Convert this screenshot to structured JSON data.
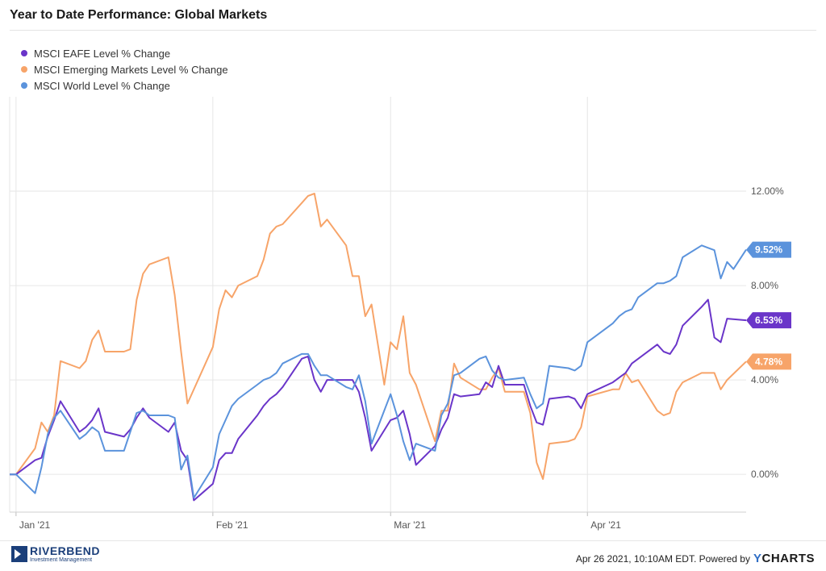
{
  "title": "Year to Date Performance: Global Markets",
  "legend": [
    {
      "label": "MSCI EAFE Level % Change",
      "color": "#6a35c9"
    },
    {
      "label": "MSCI Emerging Markets Level % Change",
      "color": "#f7a469"
    },
    {
      "label": "MSCI World Level % Change",
      "color": "#5b93dc"
    }
  ],
  "footer": {
    "logo_name": "RIVERBEND",
    "logo_sub": "Investment Management",
    "timestamp": "Apr 26 2021, 10:10AM EDT. Powered by",
    "brand_y": "Y",
    "brand_rest": "CHARTS"
  },
  "chart_data": {
    "type": "line",
    "title": "Year to Date Performance: Global Markets",
    "xlabel": "",
    "ylabel": "",
    "x_range": [
      "2020-12-31",
      "2021-04-26"
    ],
    "x_ticks": [
      {
        "date": "2021-01-01",
        "label": "Jan '21"
      },
      {
        "date": "2021-02-01",
        "label": "Feb '21"
      },
      {
        "date": "2021-03-01",
        "label": "Mar '21"
      },
      {
        "date": "2021-04-01",
        "label": "Apr '21"
      }
    ],
    "ylim": [
      -1.6,
      16
    ],
    "y_ticks": [
      0,
      4,
      8,
      12
    ],
    "y_tick_labels": [
      "0.00%",
      "4.00%",
      "8.00%",
      "12.00%"
    ],
    "y_axis_position": "right",
    "grid": true,
    "legend_position": "top-left",
    "series": [
      {
        "name": "MSCI EAFE Level % Change",
        "color": "#6a35c9",
        "end_label": "6.53%",
        "points": [
          [
            "2020-12-31",
            0
          ],
          [
            "2021-01-01",
            0
          ],
          [
            "2021-01-04",
            0.6
          ],
          [
            "2021-01-05",
            0.7
          ],
          [
            "2021-01-06",
            1.6
          ],
          [
            "2021-01-07",
            2.3
          ],
          [
            "2021-01-08",
            3.1
          ],
          [
            "2021-01-11",
            1.8
          ],
          [
            "2021-01-12",
            2.0
          ],
          [
            "2021-01-13",
            2.3
          ],
          [
            "2021-01-14",
            2.8
          ],
          [
            "2021-01-15",
            1.8
          ],
          [
            "2021-01-18",
            1.6
          ],
          [
            "2021-01-19",
            1.9
          ],
          [
            "2021-01-20",
            2.4
          ],
          [
            "2021-01-21",
            2.8
          ],
          [
            "2021-01-22",
            2.4
          ],
          [
            "2021-01-25",
            1.8
          ],
          [
            "2021-01-26",
            2.2
          ],
          [
            "2021-01-27",
            1.0
          ],
          [
            "2021-01-28",
            0.6
          ],
          [
            "2021-01-29",
            -1.1
          ],
          [
            "2021-02-01",
            -0.4
          ],
          [
            "2021-02-02",
            0.6
          ],
          [
            "2021-02-03",
            0.9
          ],
          [
            "2021-02-04",
            0.9
          ],
          [
            "2021-02-05",
            1.5
          ],
          [
            "2021-02-08",
            2.5
          ],
          [
            "2021-02-09",
            2.9
          ],
          [
            "2021-02-10",
            3.2
          ],
          [
            "2021-02-11",
            3.4
          ],
          [
            "2021-02-12",
            3.7
          ],
          [
            "2021-02-15",
            4.9
          ],
          [
            "2021-02-16",
            5.0
          ],
          [
            "2021-02-17",
            4.0
          ],
          [
            "2021-02-18",
            3.5
          ],
          [
            "2021-02-19",
            4.0
          ],
          [
            "2021-02-22",
            4.0
          ],
          [
            "2021-02-23",
            4.0
          ],
          [
            "2021-02-24",
            3.5
          ],
          [
            "2021-02-25",
            2.4
          ],
          [
            "2021-02-26",
            1.0
          ],
          [
            "2021-03-01",
            2.3
          ],
          [
            "2021-03-02",
            2.4
          ],
          [
            "2021-03-03",
            2.7
          ],
          [
            "2021-03-04",
            1.7
          ],
          [
            "2021-03-05",
            0.4
          ],
          [
            "2021-03-08",
            1.2
          ],
          [
            "2021-03-09",
            1.9
          ],
          [
            "2021-03-10",
            2.4
          ],
          [
            "2021-03-11",
            3.4
          ],
          [
            "2021-03-12",
            3.3
          ],
          [
            "2021-03-15",
            3.4
          ],
          [
            "2021-03-16",
            3.9
          ],
          [
            "2021-03-17",
            3.7
          ],
          [
            "2021-03-18",
            4.6
          ],
          [
            "2021-03-19",
            3.8
          ],
          [
            "2021-03-22",
            3.8
          ],
          [
            "2021-03-23",
            2.9
          ],
          [
            "2021-03-24",
            2.2
          ],
          [
            "2021-03-25",
            2.1
          ],
          [
            "2021-03-26",
            3.2
          ],
          [
            "2021-03-29",
            3.3
          ],
          [
            "2021-03-30",
            3.2
          ],
          [
            "2021-03-31",
            2.8
          ],
          [
            "2021-04-01",
            3.4
          ],
          [
            "2021-04-05",
            3.9
          ],
          [
            "2021-04-06",
            4.1
          ],
          [
            "2021-04-07",
            4.3
          ],
          [
            "2021-04-08",
            4.7
          ],
          [
            "2021-04-09",
            4.9
          ],
          [
            "2021-04-12",
            5.5
          ],
          [
            "2021-04-13",
            5.2
          ],
          [
            "2021-04-14",
            5.1
          ],
          [
            "2021-04-15",
            5.5
          ],
          [
            "2021-04-16",
            6.3
          ],
          [
            "2021-04-19",
            7.1
          ],
          [
            "2021-04-20",
            7.4
          ],
          [
            "2021-04-21",
            5.8
          ],
          [
            "2021-04-22",
            5.6
          ],
          [
            "2021-04-23",
            6.6
          ],
          [
            "2021-04-26",
            6.53
          ]
        ]
      },
      {
        "name": "MSCI Emerging Markets Level % Change",
        "color": "#f7a469",
        "end_label": "4.78%",
        "points": [
          [
            "2020-12-31",
            0
          ],
          [
            "2021-01-01",
            0
          ],
          [
            "2021-01-04",
            1.1
          ],
          [
            "2021-01-05",
            2.2
          ],
          [
            "2021-01-06",
            1.8
          ],
          [
            "2021-01-07",
            2.5
          ],
          [
            "2021-01-08",
            4.8
          ],
          [
            "2021-01-11",
            4.5
          ],
          [
            "2021-01-12",
            4.8
          ],
          [
            "2021-01-13",
            5.7
          ],
          [
            "2021-01-14",
            6.1
          ],
          [
            "2021-01-15",
            5.2
          ],
          [
            "2021-01-18",
            5.2
          ],
          [
            "2021-01-19",
            5.3
          ],
          [
            "2021-01-20",
            7.4
          ],
          [
            "2021-01-21",
            8.5
          ],
          [
            "2021-01-22",
            8.9
          ],
          [
            "2021-01-25",
            9.2
          ],
          [
            "2021-01-26",
            7.6
          ],
          [
            "2021-01-27",
            5.2
          ],
          [
            "2021-01-28",
            3.0
          ],
          [
            "2021-02-01",
            5.4
          ],
          [
            "2021-02-02",
            7.0
          ],
          [
            "2021-02-03",
            7.8
          ],
          [
            "2021-02-04",
            7.5
          ],
          [
            "2021-02-05",
            8.0
          ],
          [
            "2021-02-08",
            8.4
          ],
          [
            "2021-02-09",
            9.1
          ],
          [
            "2021-02-10",
            10.2
          ],
          [
            "2021-02-11",
            10.5
          ],
          [
            "2021-02-12",
            10.6
          ],
          [
            "2021-02-15",
            11.5
          ],
          [
            "2021-02-16",
            11.8
          ],
          [
            "2021-02-17",
            11.9
          ],
          [
            "2021-02-18",
            10.5
          ],
          [
            "2021-02-19",
            10.8
          ],
          [
            "2021-02-22",
            9.7
          ],
          [
            "2021-02-23",
            8.4
          ],
          [
            "2021-02-24",
            8.4
          ],
          [
            "2021-02-25",
            6.7
          ],
          [
            "2021-02-26",
            7.2
          ],
          [
            "2021-02-28",
            3.8
          ],
          [
            "2021-03-01",
            5.6
          ],
          [
            "2021-03-02",
            5.3
          ],
          [
            "2021-03-03",
            6.7
          ],
          [
            "2021-03-04",
            4.3
          ],
          [
            "2021-03-05",
            3.8
          ],
          [
            "2021-03-08",
            1.4
          ],
          [
            "2021-03-09",
            2.7
          ],
          [
            "2021-03-10",
            2.7
          ],
          [
            "2021-03-11",
            4.7
          ],
          [
            "2021-03-12",
            4.1
          ],
          [
            "2021-03-15",
            3.6
          ],
          [
            "2021-03-16",
            3.6
          ],
          [
            "2021-03-17",
            4.1
          ],
          [
            "2021-03-18",
            4.5
          ],
          [
            "2021-03-19",
            3.5
          ],
          [
            "2021-03-22",
            3.5
          ],
          [
            "2021-03-23",
            2.6
          ],
          [
            "2021-03-24",
            0.5
          ],
          [
            "2021-03-25",
            -0.2
          ],
          [
            "2021-03-26",
            1.3
          ],
          [
            "2021-03-29",
            1.4
          ],
          [
            "2021-03-30",
            1.5
          ],
          [
            "2021-03-31",
            2.0
          ],
          [
            "2021-04-01",
            3.3
          ],
          [
            "2021-04-05",
            3.6
          ],
          [
            "2021-04-06",
            3.6
          ],
          [
            "2021-04-07",
            4.3
          ],
          [
            "2021-04-08",
            3.9
          ],
          [
            "2021-04-09",
            4.0
          ],
          [
            "2021-04-12",
            2.7
          ],
          [
            "2021-04-13",
            2.5
          ],
          [
            "2021-04-14",
            2.6
          ],
          [
            "2021-04-15",
            3.5
          ],
          [
            "2021-04-16",
            3.9
          ],
          [
            "2021-04-19",
            4.3
          ],
          [
            "2021-04-20",
            4.3
          ],
          [
            "2021-04-21",
            4.3
          ],
          [
            "2021-04-22",
            3.6
          ],
          [
            "2021-04-23",
            4.0
          ],
          [
            "2021-04-26",
            4.78
          ]
        ]
      },
      {
        "name": "MSCI World Level % Change",
        "color": "#5b93dc",
        "end_label": "9.52%",
        "points": [
          [
            "2020-12-31",
            0
          ],
          [
            "2021-01-01",
            0
          ],
          [
            "2021-01-04",
            -0.8
          ],
          [
            "2021-01-05",
            0.3
          ],
          [
            "2021-01-06",
            1.7
          ],
          [
            "2021-01-07",
            2.4
          ],
          [
            "2021-01-08",
            2.7
          ],
          [
            "2021-01-11",
            1.5
          ],
          [
            "2021-01-12",
            1.7
          ],
          [
            "2021-01-13",
            2.0
          ],
          [
            "2021-01-14",
            1.8
          ],
          [
            "2021-01-15",
            1.0
          ],
          [
            "2021-01-18",
            1.0
          ],
          [
            "2021-01-19",
            1.8
          ],
          [
            "2021-01-20",
            2.6
          ],
          [
            "2021-01-21",
            2.7
          ],
          [
            "2021-01-22",
            2.5
          ],
          [
            "2021-01-25",
            2.5
          ],
          [
            "2021-01-26",
            2.4
          ],
          [
            "2021-01-27",
            0.2
          ],
          [
            "2021-01-28",
            0.8
          ],
          [
            "2021-01-29",
            -1.0
          ],
          [
            "2021-02-01",
            0.3
          ],
          [
            "2021-02-02",
            1.7
          ],
          [
            "2021-02-03",
            2.3
          ],
          [
            "2021-02-04",
            2.9
          ],
          [
            "2021-02-05",
            3.2
          ],
          [
            "2021-02-08",
            3.8
          ],
          [
            "2021-02-09",
            4.0
          ],
          [
            "2021-02-10",
            4.1
          ],
          [
            "2021-02-11",
            4.3
          ],
          [
            "2021-02-12",
            4.7
          ],
          [
            "2021-02-15",
            5.1
          ],
          [
            "2021-02-16",
            5.1
          ],
          [
            "2021-02-17",
            4.6
          ],
          [
            "2021-02-18",
            4.2
          ],
          [
            "2021-02-19",
            4.2
          ],
          [
            "2021-02-22",
            3.7
          ],
          [
            "2021-02-23",
            3.6
          ],
          [
            "2021-02-24",
            4.2
          ],
          [
            "2021-02-25",
            3.1
          ],
          [
            "2021-02-26",
            1.3
          ],
          [
            "2021-03-01",
            3.4
          ],
          [
            "2021-03-02",
            2.5
          ],
          [
            "2021-03-03",
            1.4
          ],
          [
            "2021-03-04",
            0.6
          ],
          [
            "2021-03-05",
            1.3
          ],
          [
            "2021-03-08",
            1.0
          ],
          [
            "2021-03-09",
            2.5
          ],
          [
            "2021-03-10",
            3.0
          ],
          [
            "2021-03-11",
            4.2
          ],
          [
            "2021-03-12",
            4.3
          ],
          [
            "2021-03-15",
            4.9
          ],
          [
            "2021-03-16",
            5.0
          ],
          [
            "2021-03-17",
            4.4
          ],
          [
            "2021-03-18",
            4.1
          ],
          [
            "2021-03-19",
            4.0
          ],
          [
            "2021-03-22",
            4.1
          ],
          [
            "2021-03-23",
            3.4
          ],
          [
            "2021-03-24",
            2.8
          ],
          [
            "2021-03-25",
            3.0
          ],
          [
            "2021-03-26",
            4.6
          ],
          [
            "2021-03-29",
            4.5
          ],
          [
            "2021-03-30",
            4.4
          ],
          [
            "2021-03-31",
            4.6
          ],
          [
            "2021-04-01",
            5.6
          ],
          [
            "2021-04-05",
            6.4
          ],
          [
            "2021-04-06",
            6.7
          ],
          [
            "2021-04-07",
            6.9
          ],
          [
            "2021-04-08",
            7.0
          ],
          [
            "2021-04-09",
            7.5
          ],
          [
            "2021-04-12",
            8.1
          ],
          [
            "2021-04-13",
            8.1
          ],
          [
            "2021-04-14",
            8.2
          ],
          [
            "2021-04-15",
            8.4
          ],
          [
            "2021-04-16",
            9.2
          ],
          [
            "2021-04-19",
            9.7
          ],
          [
            "2021-04-20",
            9.6
          ],
          [
            "2021-04-21",
            9.5
          ],
          [
            "2021-04-22",
            8.3
          ],
          [
            "2021-04-23",
            9.0
          ],
          [
            "2021-04-24",
            8.7
          ],
          [
            "2021-04-26",
            9.52
          ]
        ]
      }
    ]
  }
}
